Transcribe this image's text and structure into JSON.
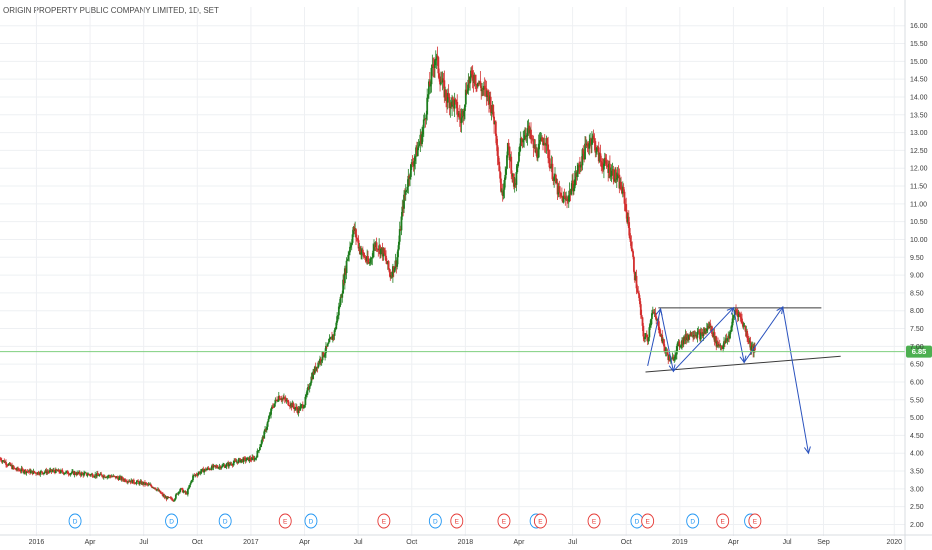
{
  "chart_data": {
    "type": "candlestick",
    "title": "ORIGIN PROPERTY PUBLIC COMPANY LIMITED, 1D, SET",
    "price_axis": {
      "ylim": [
        1.9,
        16.3
      ],
      "ticks": [
        "16.00",
        "15.50",
        "15.00",
        "14.50",
        "14.00",
        "13.50",
        "13.00",
        "12.50",
        "12.00",
        "11.50",
        "11.00",
        "10.50",
        "10.00",
        "9.50",
        "9.00",
        "8.50",
        "8.00",
        "7.50",
        "7.00",
        "6.50",
        "6.00",
        "5.50",
        "5.00",
        "4.50",
        "4.00",
        "3.50",
        "3.00",
        "2.50",
        "2.00"
      ]
    },
    "time_axis": {
      "xlim": [
        2015.83,
        2020.05
      ],
      "ticks": [
        {
          "label": "2016",
          "t": 2016.0
        },
        {
          "label": "Apr",
          "t": 2016.25
        },
        {
          "label": "Jul",
          "t": 2016.5
        },
        {
          "label": "Oct",
          "t": 2016.75
        },
        {
          "label": "2017",
          "t": 2017.0
        },
        {
          "label": "Apr",
          "t": 2017.25
        },
        {
          "label": "Jul",
          "t": 2017.5
        },
        {
          "label": "Oct",
          "t": 2017.75
        },
        {
          "label": "2018",
          "t": 2018.0
        },
        {
          "label": "Apr",
          "t": 2018.25
        },
        {
          "label": "Jul",
          "t": 2018.5
        },
        {
          "label": "Oct",
          "t": 2018.75
        },
        {
          "label": "2019",
          "t": 2019.0
        },
        {
          "label": "Apr",
          "t": 2019.25
        },
        {
          "label": "Jul",
          "t": 2019.5
        },
        {
          "label": "Sep",
          "t": 2019.67
        },
        {
          "label": "2020",
          "t": 2020.0
        }
      ]
    },
    "price_path": [
      [
        2015.83,
        3.85
      ],
      [
        2015.9,
        3.55
      ],
      [
        2016.0,
        3.45
      ],
      [
        2016.08,
        3.5
      ],
      [
        2016.15,
        3.45
      ],
      [
        2016.25,
        3.4
      ],
      [
        2016.35,
        3.35
      ],
      [
        2016.45,
        3.2
      ],
      [
        2016.5,
        3.15
      ],
      [
        2016.55,
        3.05
      ],
      [
        2016.6,
        2.75
      ],
      [
        2016.64,
        2.7
      ],
      [
        2016.67,
        3.0
      ],
      [
        2016.7,
        2.85
      ],
      [
        2016.73,
        3.35
      ],
      [
        2016.77,
        3.5
      ],
      [
        2016.82,
        3.6
      ],
      [
        2016.88,
        3.65
      ],
      [
        2016.95,
        3.8
      ],
      [
        2017.02,
        3.85
      ],
      [
        2017.06,
        4.5
      ],
      [
        2017.1,
        5.3
      ],
      [
        2017.13,
        5.6
      ],
      [
        2017.18,
        5.4
      ],
      [
        2017.22,
        5.2
      ],
      [
        2017.25,
        5.4
      ],
      [
        2017.28,
        6.1
      ],
      [
        2017.31,
        6.5
      ],
      [
        2017.35,
        6.9
      ],
      [
        2017.39,
        7.4
      ],
      [
        2017.42,
        8.4
      ],
      [
        2017.45,
        9.5
      ],
      [
        2017.48,
        10.3
      ],
      [
        2017.51,
        9.7
      ],
      [
        2017.55,
        9.3
      ],
      [
        2017.58,
        9.9
      ],
      [
        2017.62,
        9.6
      ],
      [
        2017.65,
        9.0
      ],
      [
        2017.68,
        9.4
      ],
      [
        2017.71,
        11.0
      ],
      [
        2017.74,
        11.9
      ],
      [
        2017.77,
        12.4
      ],
      [
        2017.8,
        13.0
      ],
      [
        2017.83,
        14.2
      ],
      [
        2017.86,
        15.2
      ],
      [
        2017.88,
        14.6
      ],
      [
        2017.91,
        14.0
      ],
      [
        2017.95,
        13.8
      ],
      [
        2017.98,
        13.3
      ],
      [
        2018.01,
        14.4
      ],
      [
        2018.04,
        14.6
      ],
      [
        2018.08,
        14.2
      ],
      [
        2018.11,
        14.0
      ],
      [
        2018.14,
        13.2
      ],
      [
        2018.17,
        11.2
      ],
      [
        2018.2,
        12.6
      ],
      [
        2018.23,
        11.4
      ],
      [
        2018.26,
        12.8
      ],
      [
        2018.29,
        13.1
      ],
      [
        2018.33,
        12.4
      ],
      [
        2018.37,
        12.9
      ],
      [
        2018.4,
        12.0
      ],
      [
        2018.44,
        11.2
      ],
      [
        2018.47,
        11.1
      ],
      [
        2018.5,
        11.5
      ],
      [
        2018.55,
        12.4
      ],
      [
        2018.59,
        12.9
      ],
      [
        2018.63,
        12.2
      ],
      [
        2018.67,
        12.0
      ],
      [
        2018.71,
        11.7
      ],
      [
        2018.74,
        11.2
      ],
      [
        2018.77,
        10.0
      ],
      [
        2018.79,
        9.0
      ],
      [
        2018.81,
        8.3
      ],
      [
        2018.83,
        7.3
      ],
      [
        2018.85,
        7.2
      ],
      [
        2018.87,
        8.0
      ],
      [
        2018.9,
        7.6
      ],
      [
        2018.93,
        6.9
      ],
      [
        2018.96,
        6.55
      ],
      [
        2018.99,
        7.0
      ],
      [
        2019.02,
        7.2
      ],
      [
        2019.06,
        7.4
      ],
      [
        2019.1,
        7.3
      ],
      [
        2019.14,
        7.6
      ],
      [
        2019.17,
        7.1
      ],
      [
        2019.2,
        7.0
      ],
      [
        2019.23,
        7.3
      ],
      [
        2019.26,
        8.05
      ],
      [
        2019.28,
        7.85
      ],
      [
        2019.31,
        7.4
      ],
      [
        2019.33,
        7.0
      ],
      [
        2019.35,
        6.85
      ]
    ],
    "current_price_label": "6.85",
    "current_price": 6.85,
    "drawings": {
      "triangle_top": [
        [
          2018.9,
          8.08
        ],
        [
          2019.66,
          8.08
        ]
      ],
      "triangle_bottom": [
        [
          2018.84,
          6.28
        ],
        [
          2019.75,
          6.72
        ]
      ],
      "zigzag": [
        [
          2018.85,
          6.45
        ],
        [
          2018.91,
          8.05
        ],
        [
          2018.97,
          6.3
        ],
        [
          2019.25,
          8.08
        ],
        [
          2019.3,
          6.55
        ],
        [
          2019.48,
          8.1
        ],
        [
          2019.6,
          4.0
        ]
      ]
    },
    "events": [
      {
        "t": 2016.18,
        "label": "D",
        "type": "dividend",
        "color": "#2196f3"
      },
      {
        "t": 2016.63,
        "label": "D",
        "type": "dividend",
        "color": "#2196f3"
      },
      {
        "t": 2016.88,
        "label": "D",
        "type": "dividend",
        "color": "#2196f3"
      },
      {
        "t": 2017.16,
        "label": "E",
        "type": "earnings",
        "color": "#e53935"
      },
      {
        "t": 2017.28,
        "label": "D",
        "type": "dividend",
        "color": "#2196f3"
      },
      {
        "t": 2017.62,
        "label": "E",
        "type": "earnings",
        "color": "#e53935"
      },
      {
        "t": 2017.86,
        "label": "D",
        "type": "dividend",
        "color": "#2196f3"
      },
      {
        "t": 2017.96,
        "label": "E",
        "type": "earnings",
        "color": "#e53935"
      },
      {
        "t": 2018.18,
        "label": "E",
        "type": "earnings",
        "color": "#e53935"
      },
      {
        "t": 2018.33,
        "label": "D",
        "type": "dividend",
        "color": "#2196f3"
      },
      {
        "t": 2018.35,
        "label": "E",
        "type": "earnings",
        "color": "#e53935"
      },
      {
        "t": 2018.6,
        "label": "E",
        "type": "earnings",
        "color": "#e53935"
      },
      {
        "t": 2018.8,
        "label": "D",
        "type": "dividend",
        "color": "#2196f3"
      },
      {
        "t": 2018.85,
        "label": "E",
        "type": "earnings",
        "color": "#e53935"
      },
      {
        "t": 2019.06,
        "label": "D",
        "type": "dividend",
        "color": "#2196f3"
      },
      {
        "t": 2019.2,
        "label": "E",
        "type": "earnings",
        "color": "#e53935"
      },
      {
        "t": 2019.33,
        "label": "D",
        "type": "dividend",
        "color": "#2196f3"
      },
      {
        "t": 2019.35,
        "label": "E",
        "type": "earnings",
        "color": "#e53935"
      }
    ],
    "colors": {
      "up": "#26a69a",
      "down": "#ef5350",
      "up_candle": "#1e7d1e",
      "down_candle": "#d32f2f",
      "trendline": "#3a3a3a",
      "projection": "#2a52be",
      "price_line": "#7fcf7f",
      "price_label_bg": "#4caf50"
    }
  }
}
